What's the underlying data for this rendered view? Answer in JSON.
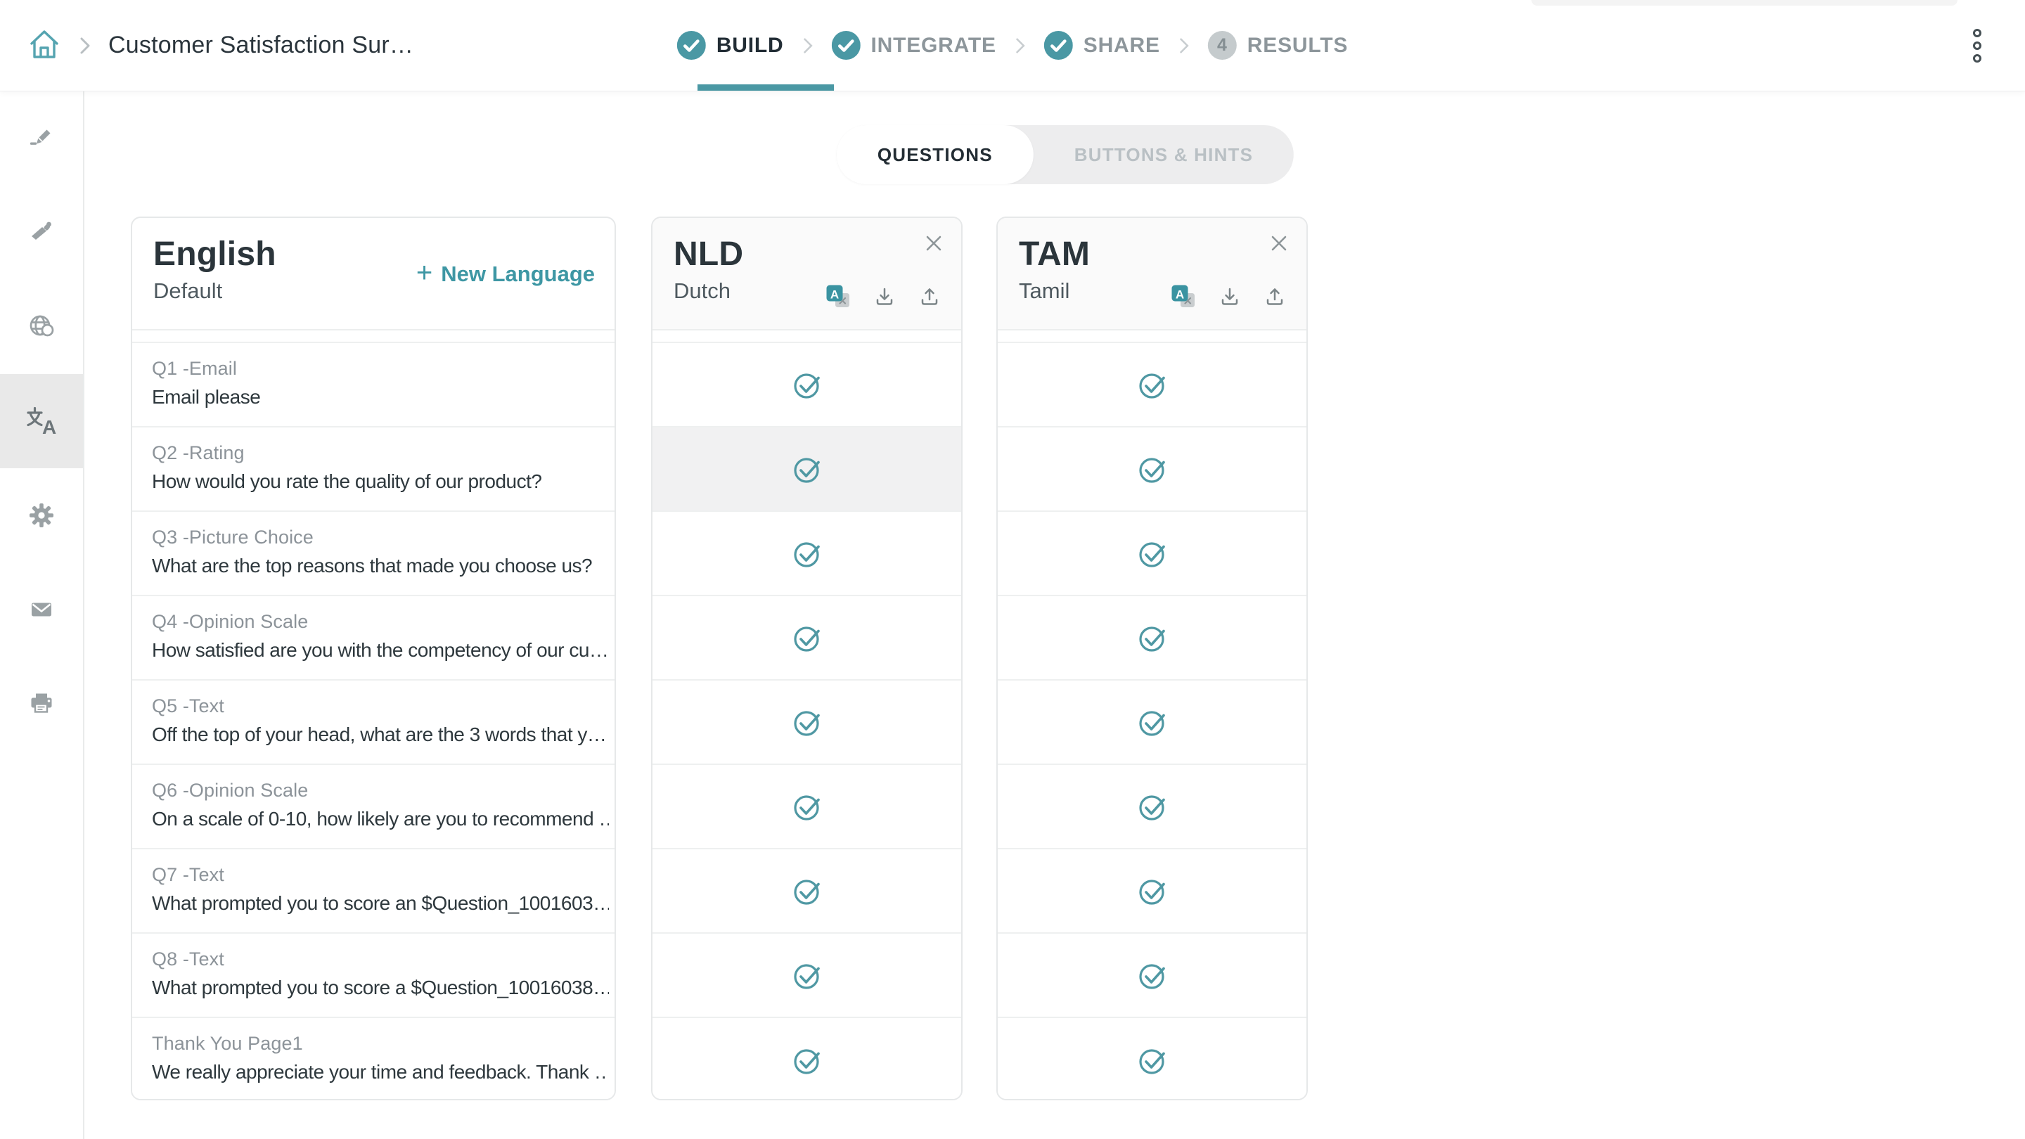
{
  "header": {
    "breadcrumb": {
      "title": "Customer Satisfaction Sur…"
    },
    "steps": [
      {
        "label": "BUILD",
        "status": "completed",
        "active": true
      },
      {
        "label": "INTEGRATE",
        "status": "completed",
        "active": false
      },
      {
        "label": "SHARE",
        "status": "completed",
        "active": false
      },
      {
        "label": "RESULTS",
        "status": "upcoming",
        "number": "4",
        "active": false
      }
    ]
  },
  "sidebar": {
    "items": [
      {
        "icon": "edit-pencil-icon"
      },
      {
        "icon": "design-brush-icon"
      },
      {
        "icon": "globe-language-icon"
      },
      {
        "icon": "translate-icon",
        "active": true
      },
      {
        "icon": "settings-gear-icon"
      },
      {
        "icon": "email-envelope-icon"
      },
      {
        "icon": "print-icon"
      }
    ]
  },
  "tabs": [
    {
      "label": "QUESTIONS",
      "active": true
    },
    {
      "label": "BUTTONS & HINTS",
      "active": false
    }
  ],
  "languages": {
    "base": {
      "title": "English",
      "subtitle": "Default",
      "plus_glyph": "+",
      "new_language_label": "New Language"
    },
    "translations": [
      {
        "code": "NLD",
        "name": "Dutch",
        "icons": [
          "auto-translate",
          "download",
          "upload"
        ],
        "closable": true
      },
      {
        "code": "TAM",
        "name": "Tamil",
        "icons": [
          "auto-translate",
          "download",
          "upload"
        ],
        "closable": true
      }
    ]
  },
  "questions": [
    {
      "label": "Q1 -Email",
      "text": "Email please"
    },
    {
      "label": "Q2 -Rating",
      "text": "How would you rate the quality of our product?"
    },
    {
      "label": "Q3 -Picture Choice",
      "text": "What are the top reasons that made you choose us?"
    },
    {
      "label": "Q4 -Opinion Scale",
      "text": "How satisfied are you with the competency of our cu…"
    },
    {
      "label": "Q5 -Text",
      "text": "Off the top of your head, what are the 3 words that y…"
    },
    {
      "label": "Q6 -Opinion Scale",
      "text": "On a scale of 0-10, how likely are you to recommend …"
    },
    {
      "label": "Q7 -Text",
      "text": "What prompted you to score an $Question_1001603…"
    },
    {
      "label": "Q8 -Text",
      "text": "What prompted you to score a $Question_10016038…"
    },
    {
      "label": "Thank You Page1",
      "text": "We really appreciate your time and feedback. Thank …"
    }
  ],
  "highlighted_cell": {
    "language_index": 0,
    "question_index": 1
  },
  "colors": {
    "accent_teal": "#4a98a4",
    "active_step_text": "#222d35",
    "inactive_step_text": "#8d969b",
    "results_circle": "#c5cbcd",
    "row_highlight": "#f1f1f2",
    "card_border": "#e6e8e9"
  }
}
